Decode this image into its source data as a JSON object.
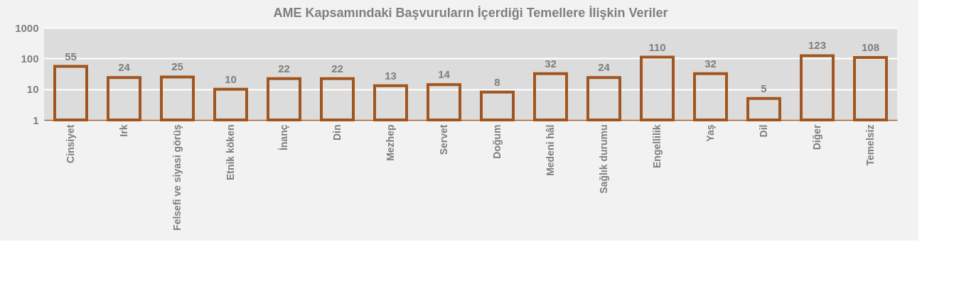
{
  "chart_data": {
    "type": "bar",
    "title": "AME Kapsamındaki Başvuruların İçerdiği Temellere İlişkin Veriler",
    "categories": [
      "Cinsiyet",
      "Irk",
      "Felsefi ve  siyasi görüş",
      "Etnik köken",
      "İnanç",
      "Din",
      "Mezhep",
      "Servet",
      "Doğum",
      "Medeni hâl",
      "Sağlık durumu",
      "Engellilik",
      "Yaş",
      "Dil",
      "Diğer",
      "Temelsiz"
    ],
    "values": [
      55,
      24,
      25,
      10,
      22,
      22,
      13,
      14,
      8,
      32,
      24,
      110,
      32,
      5,
      123,
      108
    ],
    "color": "#a0561e",
    "log": true,
    "ylim": [
      1,
      1000
    ],
    "yticks": [
      1,
      10,
      100,
      1000
    ],
    "grid": "y",
    "data_labels": true
  }
}
